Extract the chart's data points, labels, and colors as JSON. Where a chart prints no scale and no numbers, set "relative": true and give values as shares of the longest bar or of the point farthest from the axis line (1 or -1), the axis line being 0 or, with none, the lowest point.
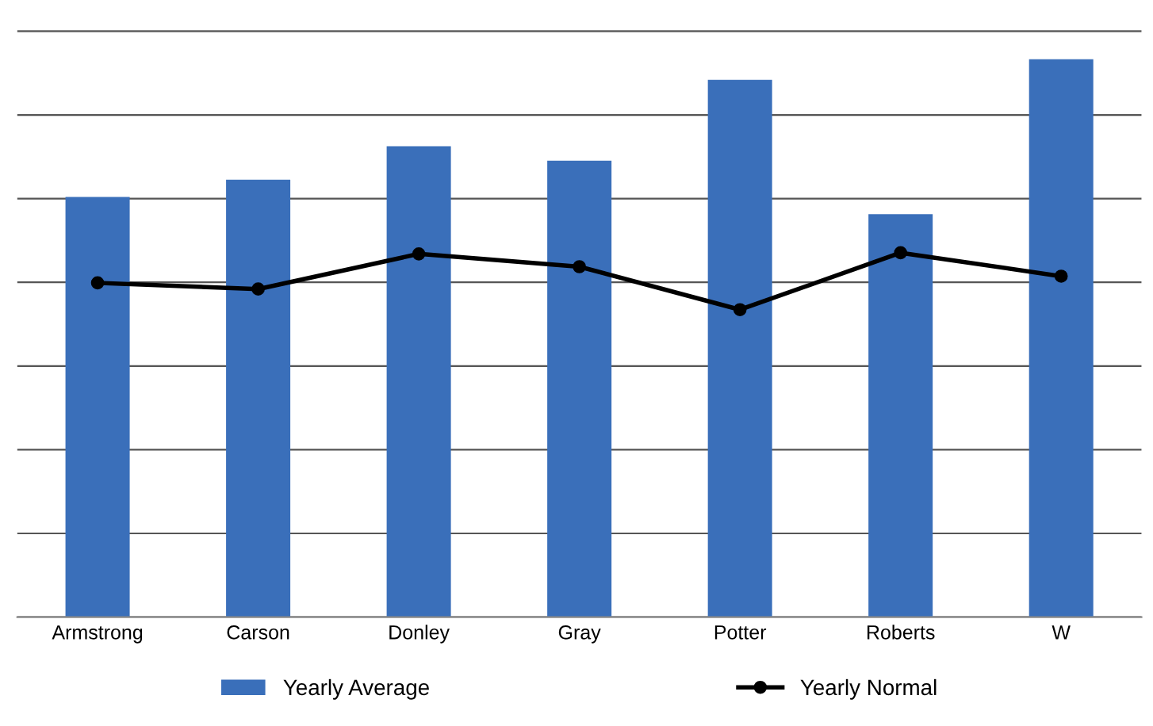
{
  "chart_data": {
    "type": "bar",
    "relative": true,
    "categories": [
      "Armstrong",
      "Carson",
      "Donley",
      "Gray",
      "Potter",
      "Roberts",
      "W"
    ],
    "series": [
      {
        "name": "Yearly Average",
        "color": "#3a6fba",
        "values": [
          0.753,
          0.784,
          0.844,
          0.818,
          0.963,
          0.722,
          1
        ]
      },
      {
        "name": "Yearly Normal",
        "type": "line",
        "color": "#000000",
        "marker": "circle",
        "values": [
          0.599,
          0.588,
          0.651,
          0.628,
          0.551,
          0.653,
          0.611
        ]
      }
    ],
    "grid": "y",
    "legend": "bottom",
    "tick_labels": "x"
  }
}
